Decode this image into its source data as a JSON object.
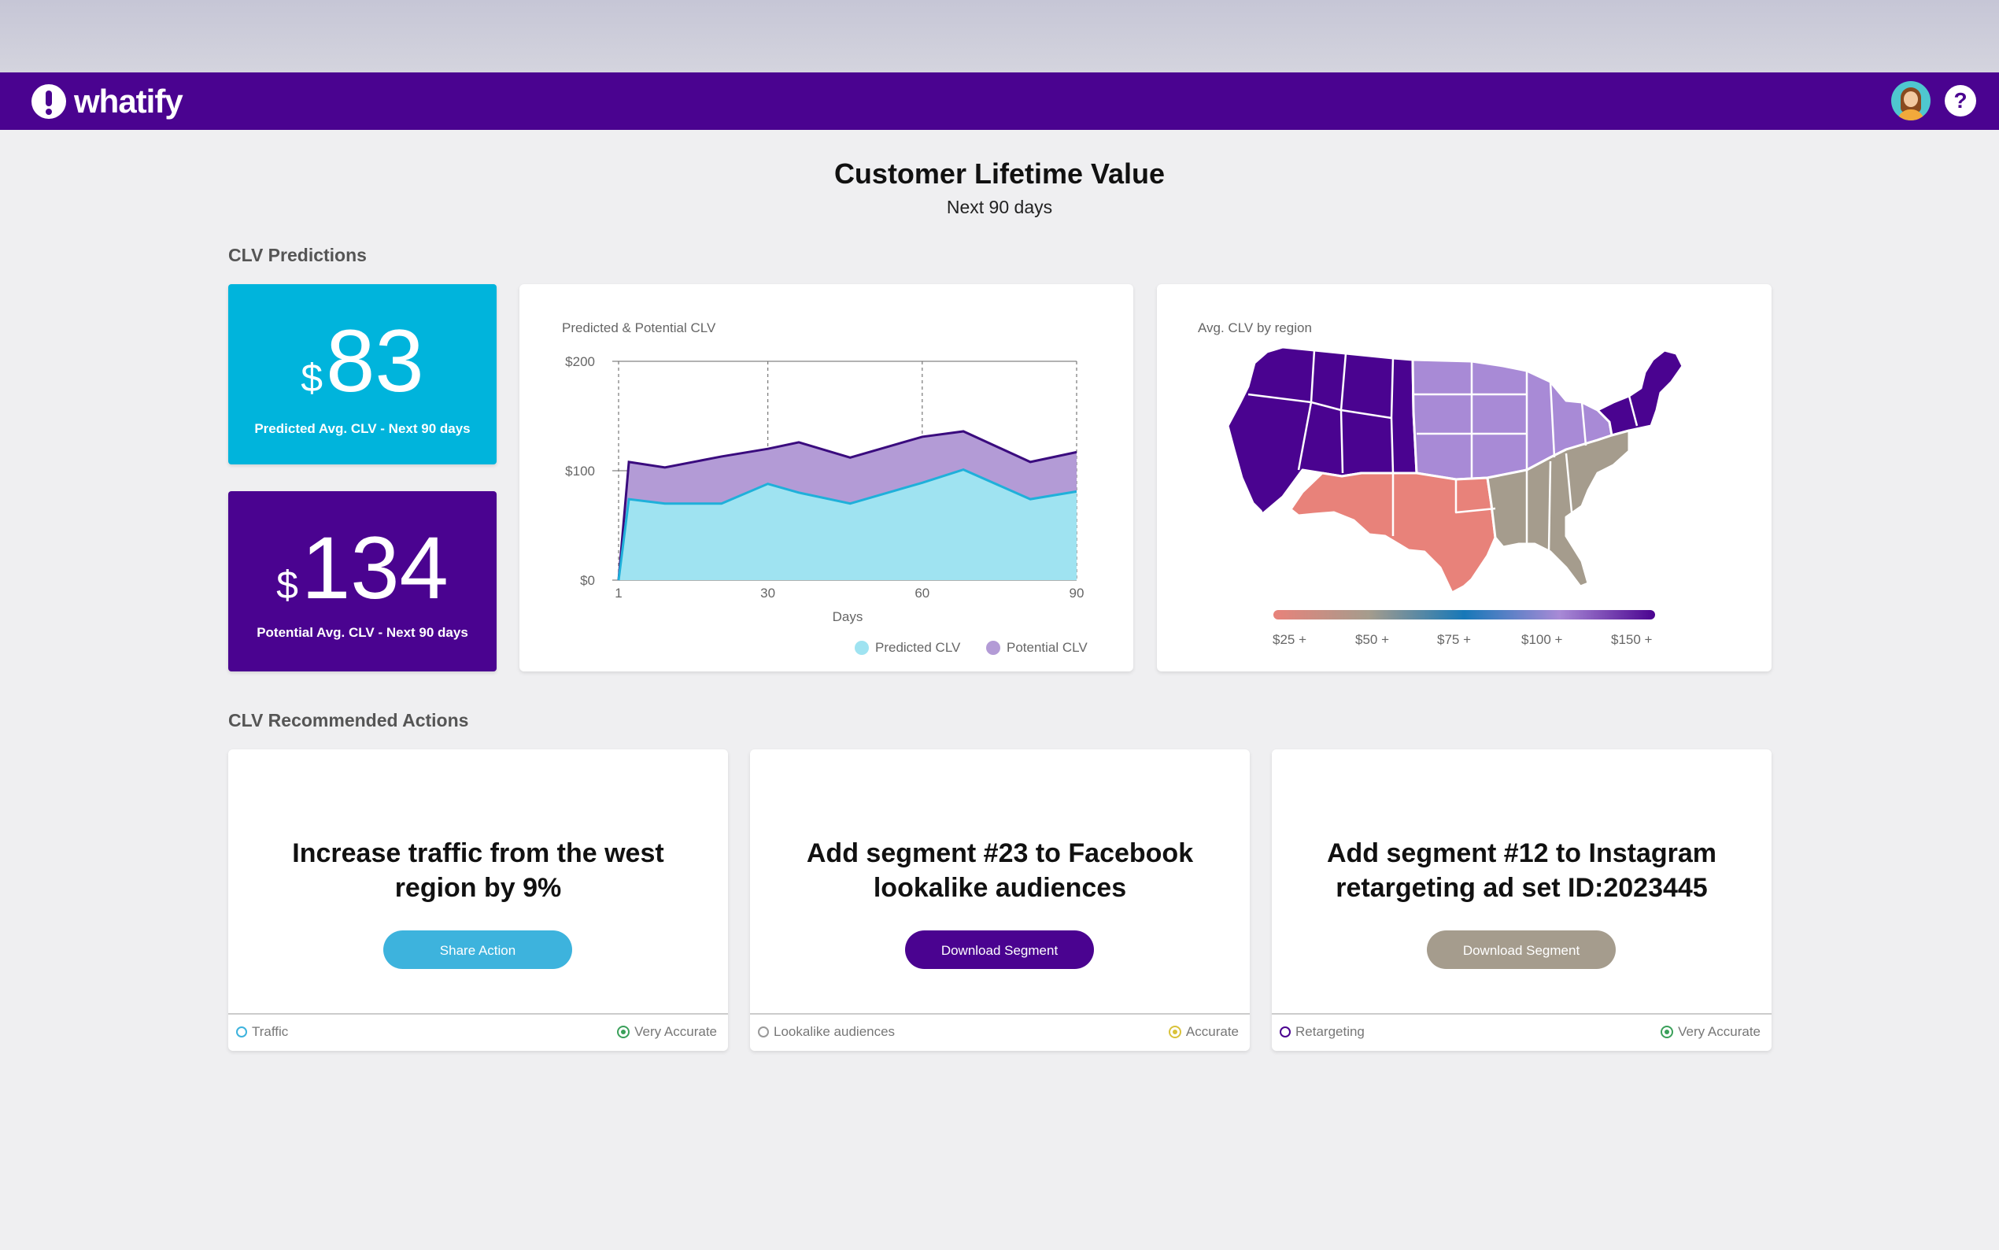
{
  "brand": {
    "name": "whatify"
  },
  "header": {
    "title": "Customer Lifetime Value",
    "subtitle": "Next 90 days"
  },
  "sections": {
    "predictions": "CLV Predictions",
    "actions": "CLV Recommended Actions"
  },
  "stats": [
    {
      "currency": "$",
      "value": "83",
      "label": "Predicted Avg. CLV - Next 90 days",
      "color": "#00b4dc"
    },
    {
      "currency": "$",
      "value": "134",
      "label": "Potential Avg. CLV - Next 90 days",
      "color": "#4a0390"
    }
  ],
  "chart_data": {
    "type": "area",
    "title": "Predicted & Potential CLV",
    "xlabel": "Days",
    "ylabel": "",
    "xlim": [
      1,
      90
    ],
    "ylim": [
      0,
      200
    ],
    "y_ticks": [
      "$0",
      "$100",
      "$200"
    ],
    "x_ticks": [
      "1",
      "30",
      "60",
      "90"
    ],
    "x": [
      1,
      3,
      10,
      21,
      30,
      36,
      46,
      60,
      68,
      81,
      90
    ],
    "series": [
      {
        "name": "Predicted CLV",
        "color": "#9fe3f1",
        "line_color": "#1fb0da",
        "values": [
          0,
          74,
          70,
          70,
          88,
          80,
          70,
          89,
          101,
          74,
          81
        ]
      },
      {
        "name": "Potential CLV",
        "color": "#b39bd6",
        "line_color": "#3a0b7e",
        "values": [
          0,
          108,
          103,
          113,
          120,
          126,
          112,
          131,
          136,
          108,
          117
        ]
      }
    ],
    "legend": [
      "Predicted CLV",
      "Potential CLV"
    ]
  },
  "map": {
    "title": "Avg. CLV by region",
    "scale_labels": [
      "$25 +",
      "$50 +",
      "$75 +",
      "$100 +",
      "$150 +"
    ],
    "colors": {
      "west": "#4a0390",
      "midwest": "#a88ad6",
      "southwest": "#e8827a",
      "southeast": "#a59c8d",
      "northeast": "#4a0390"
    }
  },
  "actions": [
    {
      "title": "Increase traffic from the west region by 9%",
      "button": "Share Action",
      "button_color": "#3db3dd",
      "category": "Traffic",
      "accuracy": "Very Accurate",
      "accuracy_color": "#3aa05a"
    },
    {
      "title": "Add segment #23 to Facebook lookalike audiences",
      "button": "Download Segment",
      "button_color": "#4a0390",
      "category": "Lookalike audiences",
      "accuracy": "Accurate",
      "accuracy_color": "#d9c23a"
    },
    {
      "title": "Add segment #12 to Instagram retargeting ad set ID:2023445",
      "button": "Download Segment",
      "button_color": "#a59c8d",
      "category": "Retargeting",
      "accuracy": "Very Accurate",
      "accuracy_color": "#3aa05a"
    }
  ]
}
